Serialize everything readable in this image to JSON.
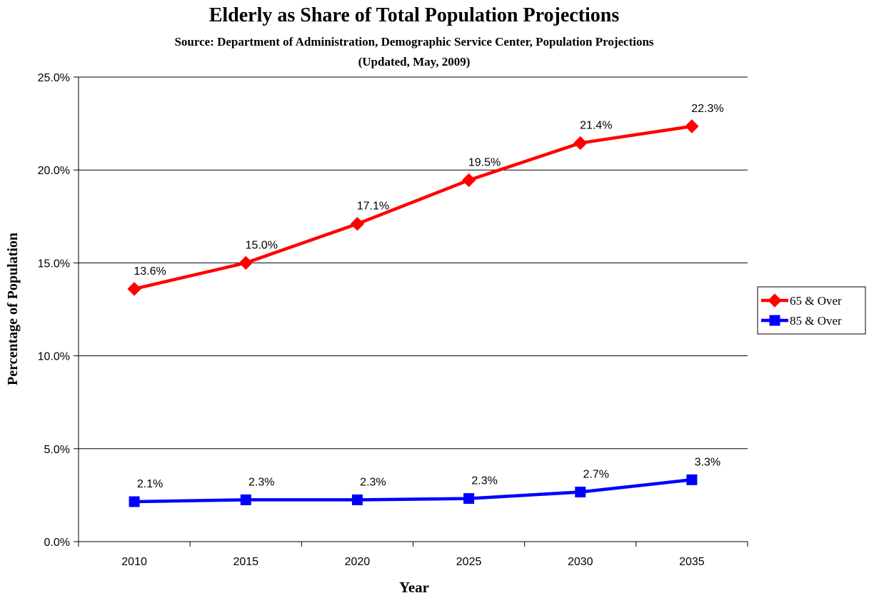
{
  "chart_data": {
    "type": "line",
    "title": "Elderly as Share of Total Population Projections",
    "subtitle_lines": [
      "Source: Department of Administration, Demographic Service Center, Population Projections",
      "(Updated, May, 2009)"
    ],
    "xlabel": "Year",
    "ylabel": "Percentage of Population",
    "categories": [
      "2010",
      "2015",
      "2020",
      "2025",
      "2030",
      "2035"
    ],
    "y_ticks": [
      "0.0%",
      "5.0%",
      "10.0%",
      "15.0%",
      "20.0%",
      "25.0%"
    ],
    "ylim": [
      0,
      25
    ],
    "grid": true,
    "legend": "right",
    "series": [
      {
        "name": "65 & Over",
        "color": "#ff0000",
        "marker": "diamond",
        "values": [
          13.6,
          15.0,
          17.1,
          19.45,
          21.45,
          22.35
        ],
        "labels": [
          "13.6%",
          "15.0%",
          "17.1%",
          "19.5%",
          "21.4%",
          "22.3%"
        ]
      },
      {
        "name": "85 & Over",
        "color": "#0000ff",
        "marker": "square",
        "values": [
          2.15,
          2.25,
          2.25,
          2.32,
          2.67,
          3.33
        ],
        "labels": [
          "2.1%",
          "2.3%",
          "2.3%",
          "2.3%",
          "2.7%",
          "3.3%"
        ]
      }
    ]
  }
}
